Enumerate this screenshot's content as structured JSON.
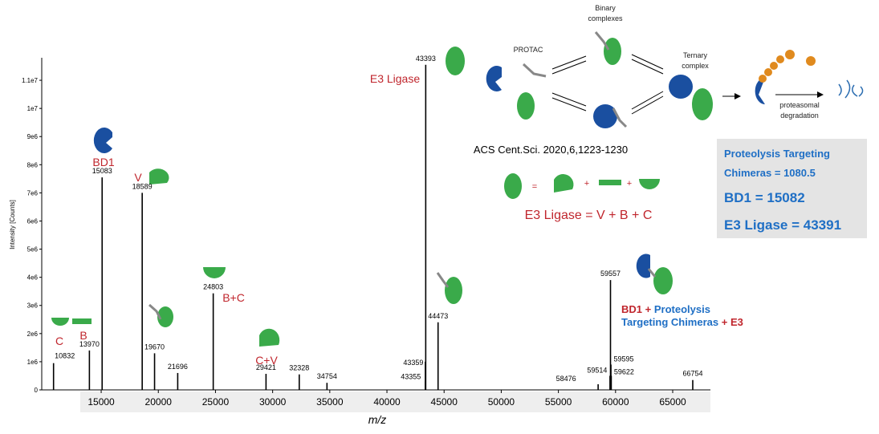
{
  "chart_data": {
    "type": "spectrum",
    "x_label": "m/z",
    "y_label": "Intensity [Counts]",
    "x": [
      10832,
      13970,
      15083,
      18589,
      19670,
      21696,
      24803,
      29421,
      32328,
      34754,
      43355,
      43359,
      43393,
      44473,
      58476,
      59514,
      59557,
      59595,
      59622,
      66754
    ],
    "values": [
      950000,
      1400000,
      7550000,
      7000000,
      1300000,
      600000,
      3430000,
      570000,
      550000,
      250000,
      300000,
      1000000,
      11550000,
      2400000,
      200000,
      500000,
      3900000,
      900000,
      500000,
      350000
    ],
    "color": "#000000",
    "xlim": [
      9800,
      68300
    ],
    "xticks": [
      15000,
      20000,
      25000,
      30000,
      35000,
      40000,
      45000,
      50000,
      55000,
      60000,
      65000
    ],
    "ylim": [
      0,
      11800000
    ],
    "yticks": [
      {
        "value": 0,
        "label": "0"
      },
      {
        "value": 1000000,
        "label": "1e6"
      },
      {
        "value": 2000000,
        "label": "2e6"
      },
      {
        "value": 3000000,
        "label": "3e6"
      },
      {
        "value": 4000000,
        "label": "4e6"
      },
      {
        "value": 5000000,
        "label": "5e6"
      },
      {
        "value": 6000000,
        "label": "6e6"
      },
      {
        "value": 7000000,
        "label": "7e6"
      },
      {
        "value": 8000000,
        "label": "8e6"
      },
      {
        "value": 9000000,
        "label": "9e6"
      },
      {
        "value": 10000000,
        "label": "1e7"
      },
      {
        "value": 11000000,
        "label": "1.1e7"
      }
    ],
    "annotations": [
      "BD1",
      "V",
      "B+C",
      "C",
      "B",
      "C+V",
      "E3 Ligase"
    ],
    "complex_label": [
      "BD1 +",
      "Proteolysis",
      "Targeting Chimeras",
      "+ E3"
    ]
  },
  "schematic": {
    "protac": "PROTAC",
    "binary": [
      "Binary",
      "complexes"
    ],
    "ternary": [
      "Ternary",
      "complex"
    ],
    "degradation": [
      "proteasomal",
      "degradation"
    ],
    "citation": "ACS Cent.Sci. 2020,6,1223-1230",
    "equals": "=",
    "plus": "+",
    "equation": "E3 Ligase =  V  +  B +  C"
  },
  "info_box": {
    "lines": [
      "Proteolysis  Targeting",
      "Chimeras = 1080.5",
      "BD1 = 15082",
      "E3 Ligase = 43391"
    ]
  }
}
